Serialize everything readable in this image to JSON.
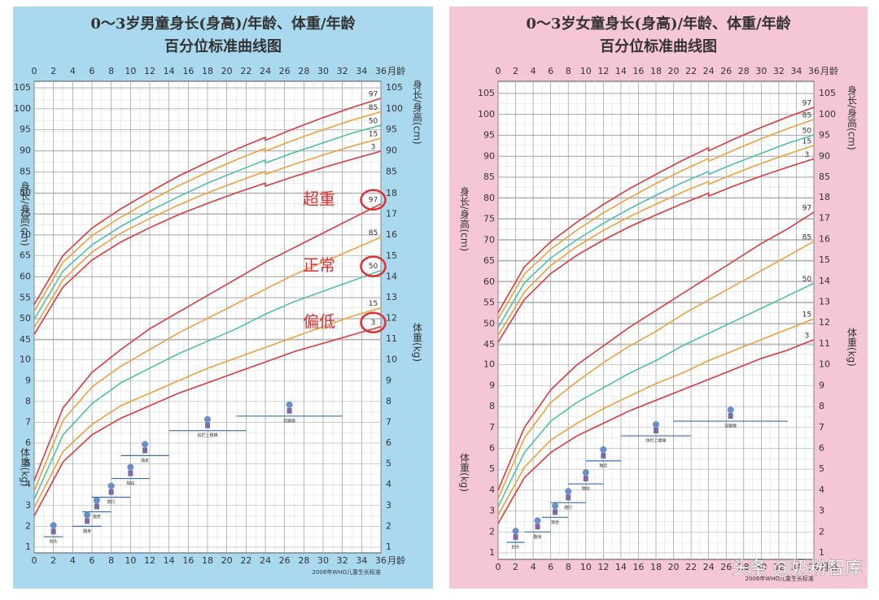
{
  "chart_data": [
    {
      "type": "line",
      "title": [
        "0～3岁男童身长(身高)/年龄、体重/年龄",
        "百分位标准曲线图"
      ],
      "x_label": "月龄",
      "y_label": "身长/身高(cm)",
      "y2_label": "体重(kg)",
      "xlim": [
        0,
        36
      ],
      "xticks": [
        0,
        2,
        4,
        6,
        8,
        10,
        12,
        14,
        16,
        18,
        20,
        22,
        24,
        26,
        28,
        30,
        32,
        34,
        36
      ],
      "ylim": [
        45,
        105
      ],
      "yticks": [
        45,
        50,
        55,
        60,
        65,
        70,
        75,
        80,
        85,
        90,
        95,
        100,
        105
      ],
      "y2lim": [
        1,
        18
      ],
      "y2ticks": [
        1,
        2,
        3,
        4,
        5,
        6,
        7,
        8,
        9,
        10,
        11,
        12,
        13,
        14,
        15,
        16,
        17,
        18
      ],
      "series": [
        {
          "name": "3",
          "color": "#e0383c",
          "x": [
            0,
            3,
            6,
            9,
            12,
            15,
            18,
            21,
            24,
            24,
            27,
            30,
            33,
            36
          ],
          "values": [
            46.3,
            57.6,
            64.0,
            68.3,
            71.7,
            74.8,
            77.5,
            80.0,
            82.3,
            81.6,
            83.9,
            86.0,
            88.0,
            89.9
          ]
        },
        {
          "name": "15",
          "color": "#f0a040",
          "x": [
            0,
            3,
            6,
            9,
            12,
            15,
            18,
            21,
            24,
            24,
            27,
            30,
            33,
            36
          ],
          "values": [
            47.9,
            59.3,
            65.9,
            70.4,
            73.9,
            77.1,
            80.0,
            82.6,
            85.1,
            84.4,
            86.8,
            89.0,
            91.1,
            93.0
          ]
        },
        {
          "name": "50",
          "color": "#4fbfae",
          "x": [
            0,
            3,
            6,
            9,
            12,
            15,
            18,
            21,
            24,
            24,
            27,
            30,
            33,
            36
          ],
          "values": [
            49.9,
            61.4,
            67.6,
            72.0,
            75.7,
            79.1,
            82.3,
            85.1,
            87.8,
            87.1,
            89.6,
            91.9,
            94.2,
            96.1
          ]
        },
        {
          "name": "85",
          "color": "#f0a040",
          "x": [
            0,
            3,
            6,
            9,
            12,
            15,
            18,
            21,
            24,
            24,
            27,
            30,
            33,
            36
          ],
          "values": [
            51.8,
            63.5,
            69.8,
            74.2,
            78.1,
            81.7,
            84.9,
            87.9,
            90.6,
            89.9,
            92.6,
            95.0,
            97.3,
            99.3
          ]
        },
        {
          "name": "97",
          "color": "#e0383c",
          "x": [
            0,
            3,
            6,
            9,
            12,
            15,
            18,
            21,
            24,
            24,
            27,
            30,
            33,
            36
          ],
          "values": [
            53.4,
            65.1,
            71.6,
            76.2,
            80.2,
            84.0,
            87.3,
            90.4,
            93.2,
            92.5,
            95.3,
            97.9,
            100.3,
            102.5
          ]
        },
        {
          "name": "3",
          "color": "#e0383c",
          "axis": "y2",
          "x": [
            0,
            3,
            6,
            9,
            12,
            15,
            18,
            21,
            24,
            27,
            30,
            33,
            36
          ],
          "values": [
            2.5,
            5.1,
            6.4,
            7.2,
            7.8,
            8.4,
            8.9,
            9.4,
            9.9,
            10.4,
            10.8,
            11.2,
            11.6
          ]
        },
        {
          "name": "15",
          "color": "#f0a040",
          "axis": "y2",
          "x": [
            0,
            3,
            6,
            9,
            12,
            15,
            18,
            21,
            24,
            27,
            30,
            33,
            36
          ],
          "values": [
            2.9,
            5.6,
            6.9,
            7.8,
            8.4,
            9.0,
            9.6,
            10.1,
            10.6,
            11.1,
            11.6,
            12.1,
            12.5
          ]
        },
        {
          "name": "50",
          "color": "#4fbfae",
          "axis": "y2",
          "x": [
            0,
            3,
            6,
            9,
            12,
            15,
            18,
            21,
            24,
            27,
            30,
            33,
            36
          ],
          "values": [
            3.3,
            6.4,
            7.9,
            8.9,
            9.6,
            10.3,
            10.9,
            11.5,
            12.2,
            12.8,
            13.3,
            13.8,
            14.3
          ]
        },
        {
          "name": "85",
          "color": "#f0a040",
          "axis": "y2",
          "x": [
            0,
            3,
            6,
            9,
            12,
            15,
            18,
            21,
            24,
            27,
            30,
            33,
            36
          ],
          "values": [
            3.7,
            7.1,
            8.7,
            9.7,
            10.5,
            11.3,
            12.0,
            12.7,
            13.4,
            14.1,
            14.7,
            15.3,
            15.9
          ]
        },
        {
          "name": "97",
          "color": "#e0383c",
          "axis": "y2",
          "x": [
            0,
            3,
            6,
            9,
            12,
            15,
            18,
            21,
            24,
            27,
            30,
            33,
            36
          ],
          "values": [
            4.2,
            7.7,
            9.4,
            10.5,
            11.5,
            12.3,
            13.1,
            13.9,
            14.7,
            15.4,
            16.1,
            16.8,
            17.5
          ]
        }
      ],
      "milestones": [
        {
          "label": "抬头",
          "from": 1,
          "to": 3
        },
        {
          "label": "翻身",
          "from": 4,
          "to": 7
        },
        {
          "label": "独坐",
          "from": 5,
          "to": 8
        },
        {
          "label": "爬行",
          "from": 6,
          "to": 10
        },
        {
          "label": "独站",
          "from": 8,
          "to": 12
        },
        {
          "label": "独走",
          "from": 9,
          "to": 14
        },
        {
          "label": "扶栏上楼梯",
          "from": 14,
          "to": 22
        },
        {
          "label": "双脚跳",
          "from": 21,
          "to": 32
        }
      ],
      "annotations": [
        "超重",
        "正常",
        "偏低"
      ],
      "source": "2006年WHO儿童生长标准"
    },
    {
      "type": "line",
      "title": [
        "0～3岁女童身长(身高)/年龄、体重/年龄",
        "百分位标准曲线图"
      ],
      "x_label": "月龄",
      "y_label": "身长/身高(cm)",
      "y2_label": "体重(kg)",
      "xlim": [
        0,
        36
      ],
      "xticks": [
        0,
        2,
        4,
        6,
        8,
        10,
        12,
        14,
        16,
        18,
        20,
        22,
        24,
        26,
        28,
        30,
        32,
        34,
        36
      ],
      "ylim": [
        45,
        105
      ],
      "yticks": [
        45,
        50,
        55,
        60,
        65,
        70,
        75,
        80,
        85,
        90,
        95,
        100,
        105
      ],
      "y2lim": [
        1,
        18
      ],
      "y2ticks": [
        1,
        2,
        3,
        4,
        5,
        6,
        7,
        8,
        9,
        10,
        11,
        12,
        13,
        14,
        15,
        16,
        17,
        18
      ],
      "series": [
        {
          "name": "3",
          "color": "#e0383c",
          "x": [
            0,
            3,
            6,
            9,
            12,
            15,
            18,
            21,
            24,
            24,
            27,
            30,
            33,
            36
          ],
          "values": [
            45.6,
            55.8,
            62.0,
            66.4,
            70.0,
            73.2,
            76.0,
            78.7,
            81.2,
            80.5,
            83.0,
            85.3,
            87.4,
            89.4
          ]
        },
        {
          "name": "15",
          "color": "#f0a040",
          "x": [
            0,
            3,
            6,
            9,
            12,
            15,
            18,
            21,
            24,
            24,
            27,
            30,
            33,
            36
          ],
          "values": [
            47.2,
            57.6,
            63.9,
            68.5,
            72.3,
            75.6,
            78.6,
            81.4,
            84.0,
            83.3,
            85.9,
            88.3,
            90.5,
            92.6
          ]
        },
        {
          "name": "50",
          "color": "#4fbfae",
          "x": [
            0,
            3,
            6,
            9,
            12,
            15,
            18,
            21,
            24,
            24,
            27,
            30,
            33,
            36
          ],
          "values": [
            49.1,
            59.8,
            65.7,
            70.1,
            74.0,
            77.5,
            80.7,
            83.7,
            86.4,
            85.7,
            88.3,
            90.7,
            93.1,
            95.1
          ]
        },
        {
          "name": "85",
          "color": "#f0a040",
          "x": [
            0,
            3,
            6,
            9,
            12,
            15,
            18,
            21,
            24,
            24,
            27,
            30,
            33,
            36
          ],
          "values": [
            51.1,
            61.9,
            67.8,
            72.4,
            76.5,
            80.1,
            83.5,
            86.6,
            89.5,
            88.8,
            91.6,
            94.2,
            96.6,
            98.8
          ]
        },
        {
          "name": "97",
          "color": "#e0383c",
          "x": [
            0,
            3,
            6,
            9,
            12,
            15,
            18,
            21,
            24,
            24,
            27,
            30,
            33,
            36
          ],
          "values": [
            52.7,
            63.6,
            69.6,
            74.3,
            78.5,
            82.3,
            85.7,
            89.0,
            92.0,
            91.3,
            94.2,
            96.9,
            99.4,
            101.7
          ]
        },
        {
          "name": "3",
          "color": "#e0383c",
          "axis": "y2",
          "x": [
            0,
            3,
            6,
            9,
            12,
            15,
            18,
            21,
            24,
            27,
            30,
            33,
            36
          ],
          "values": [
            2.4,
            4.6,
            5.8,
            6.6,
            7.2,
            7.8,
            8.3,
            8.8,
            9.3,
            9.8,
            10.3,
            10.7,
            11.2
          ]
        },
        {
          "name": "15",
          "color": "#f0a040",
          "axis": "y2",
          "x": [
            0,
            3,
            6,
            9,
            12,
            15,
            18,
            21,
            24,
            27,
            30,
            33,
            36
          ],
          "values": [
            2.8,
            5.1,
            6.4,
            7.2,
            7.9,
            8.5,
            9.1,
            9.6,
            10.2,
            10.7,
            11.2,
            11.7,
            12.2
          ]
        },
        {
          "name": "50",
          "color": "#4fbfae",
          "axis": "y2",
          "x": [
            0,
            3,
            6,
            9,
            12,
            15,
            18,
            21,
            24,
            27,
            30,
            33,
            36
          ],
          "values": [
            3.2,
            5.8,
            7.3,
            8.2,
            8.9,
            9.6,
            10.2,
            10.9,
            11.5,
            12.1,
            12.7,
            13.3,
            13.9
          ]
        },
        {
          "name": "85",
          "color": "#f0a040",
          "axis": "y2",
          "x": [
            0,
            3,
            6,
            9,
            12,
            15,
            18,
            21,
            24,
            27,
            30,
            33,
            36
          ],
          "values": [
            3.6,
            6.5,
            8.2,
            9.2,
            10.1,
            10.9,
            11.6,
            12.4,
            13.1,
            13.8,
            14.5,
            15.2,
            15.9
          ]
        },
        {
          "name": "97",
          "color": "#e0383c",
          "axis": "y2",
          "x": [
            0,
            3,
            6,
            9,
            12,
            15,
            18,
            21,
            24,
            27,
            30,
            33,
            36
          ],
          "values": [
            4.0,
            7.0,
            8.8,
            10.0,
            10.9,
            11.8,
            12.6,
            13.4,
            14.2,
            15.0,
            15.8,
            16.5,
            17.3
          ]
        }
      ],
      "milestones": [
        {
          "label": "抬头",
          "from": 1,
          "to": 3
        },
        {
          "label": "翻身",
          "from": 3,
          "to": 6
        },
        {
          "label": "独坐",
          "from": 5,
          "to": 8
        },
        {
          "label": "爬行",
          "from": 6,
          "to": 10
        },
        {
          "label": "独站",
          "from": 8,
          "to": 12
        },
        {
          "label": "独走",
          "from": 10,
          "to": 14
        },
        {
          "label": "扶栏上楼梯",
          "from": 14,
          "to": 22
        },
        {
          "label": "双脚跳",
          "from": 20,
          "to": 33
        }
      ],
      "source": "2006年WHO儿童生长标准"
    }
  ],
  "watermark": "头条 @奶粉智库"
}
